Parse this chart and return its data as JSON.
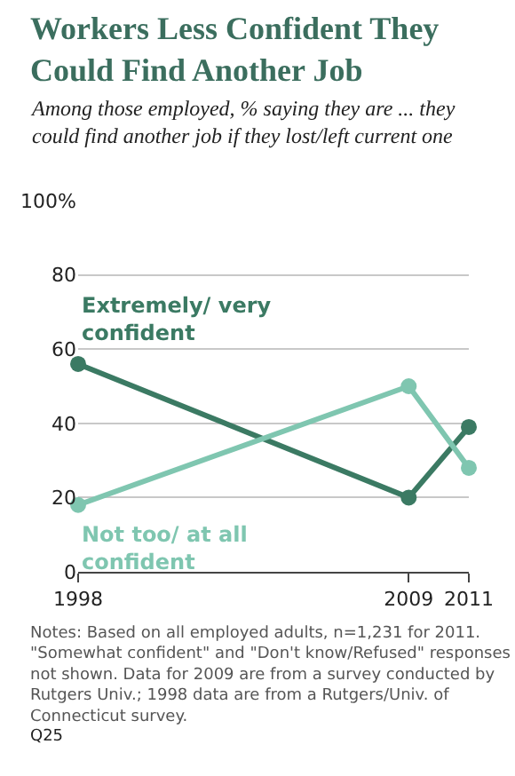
{
  "chart_data": {
    "type": "line",
    "title": "Workers Less Confident They Could Find Another Job",
    "subtitle": "Among those employed, % saying they are ... they could find another job if they lost/left current one",
    "x": [
      1998,
      2009,
      2011
    ],
    "xlim": [
      1998,
      2011
    ],
    "xticks": [
      1998,
      2009,
      2011
    ],
    "ylim": [
      0,
      100
    ],
    "yticks": [
      0,
      20,
      40,
      60,
      {
        "value": 100,
        "label": "100%"
      },
      80
    ],
    "series": [
      {
        "name": "Extremely/ very confident",
        "color": "#3b7a63",
        "values": [
          56,
          20,
          39
        ]
      },
      {
        "name": "Not too/ at all confident",
        "color": "#7fc6b0",
        "values": [
          18,
          50,
          28
        ]
      }
    ],
    "marker": "circle",
    "line_style": "solid",
    "grid": "y",
    "legend": false,
    "annotations": [
      "Notes: Based on all employed adults, n=1,231 for 2011. \"Somewhat confident\" and \"Don't know/Refused\" responses not shown. Data for 2009 are from a survey conducted by Rutgers Univ.; 1998 data are from a Rutgers/Univ. of Connecticut survey.",
      "Q25"
    ]
  }
}
